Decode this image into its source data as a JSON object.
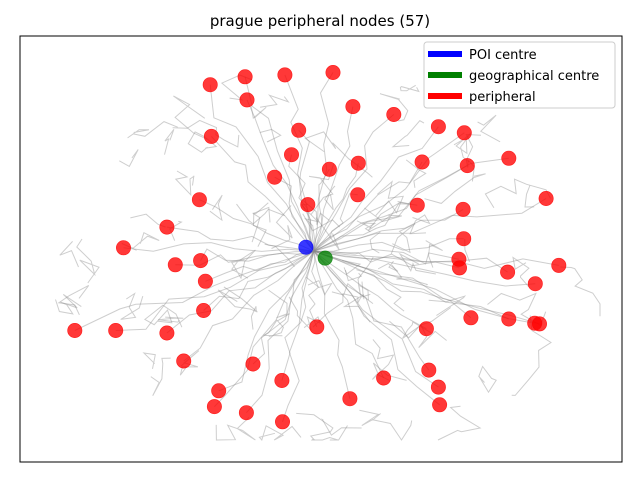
{
  "chart_data": {
    "type": "scatter",
    "title": "prague peripheral nodes (57)",
    "xlabel": "",
    "ylabel": "",
    "xlim": [
      0,
      1000
    ],
    "ylim": [
      0,
      700
    ],
    "axes_ticks": false,
    "grid": false,
    "legend_position": "top-right",
    "legend": [
      {
        "label": "POI centre",
        "color": "#0000ff"
      },
      {
        "label": "geographical centre",
        "color": "#008000"
      },
      {
        "label": "peripheral",
        "color": "#ff0000"
      }
    ],
    "series": [
      {
        "name": "POI centre",
        "color": "#0000ff",
        "points": [
          [
            475,
            353
          ]
        ]
      },
      {
        "name": "geographical centre",
        "color": "#008000",
        "points": [
          [
            507,
            335
          ]
        ]
      },
      {
        "name": "peripheral",
        "color": "#ff0000",
        "points": [
          [
            316,
            620
          ],
          [
            374,
            633
          ],
          [
            440,
            636
          ],
          [
            520,
            640
          ],
          [
            377,
            595
          ],
          [
            553,
            584
          ],
          [
            621,
            571
          ],
          [
            318,
            535
          ],
          [
            463,
            545
          ],
          [
            695,
            551
          ],
          [
            738,
            541
          ],
          [
            451,
            505
          ],
          [
            668,
            493
          ],
          [
            562,
            491
          ],
          [
            743,
            487
          ],
          [
            812,
            499
          ],
          [
            423,
            468
          ],
          [
            514,
            481
          ],
          [
            561,
            439
          ],
          [
            298,
            431
          ],
          [
            660,
            422
          ],
          [
            736,
            415
          ],
          [
            874,
            433
          ],
          [
            478,
            423
          ],
          [
            244,
            386
          ],
          [
            172,
            352
          ],
          [
            737,
            367
          ],
          [
            729,
            333
          ],
          [
            300,
            331
          ],
          [
            258,
            324
          ],
          [
            730,
            319
          ],
          [
            810,
            312
          ],
          [
            895,
            323
          ],
          [
            308,
            297
          ],
          [
            856,
            293
          ],
          [
            305,
            249
          ],
          [
            749,
            237
          ],
          [
            812,
            235
          ],
          [
            863,
            227
          ],
          [
            91,
            216
          ],
          [
            159,
            216
          ],
          [
            244,
            212
          ],
          [
            493,
            222
          ],
          [
            675,
            219
          ],
          [
            272,
            166
          ],
          [
            387,
            161
          ],
          [
            679,
            151
          ],
          [
            330,
            117
          ],
          [
            435,
            134
          ],
          [
            604,
            138
          ],
          [
            695,
            123
          ],
          [
            855,
            228
          ],
          [
            323,
            91
          ],
          [
            376,
            81
          ],
          [
            436,
            66
          ],
          [
            548,
            104
          ],
          [
            697,
            94
          ]
        ]
      }
    ]
  }
}
